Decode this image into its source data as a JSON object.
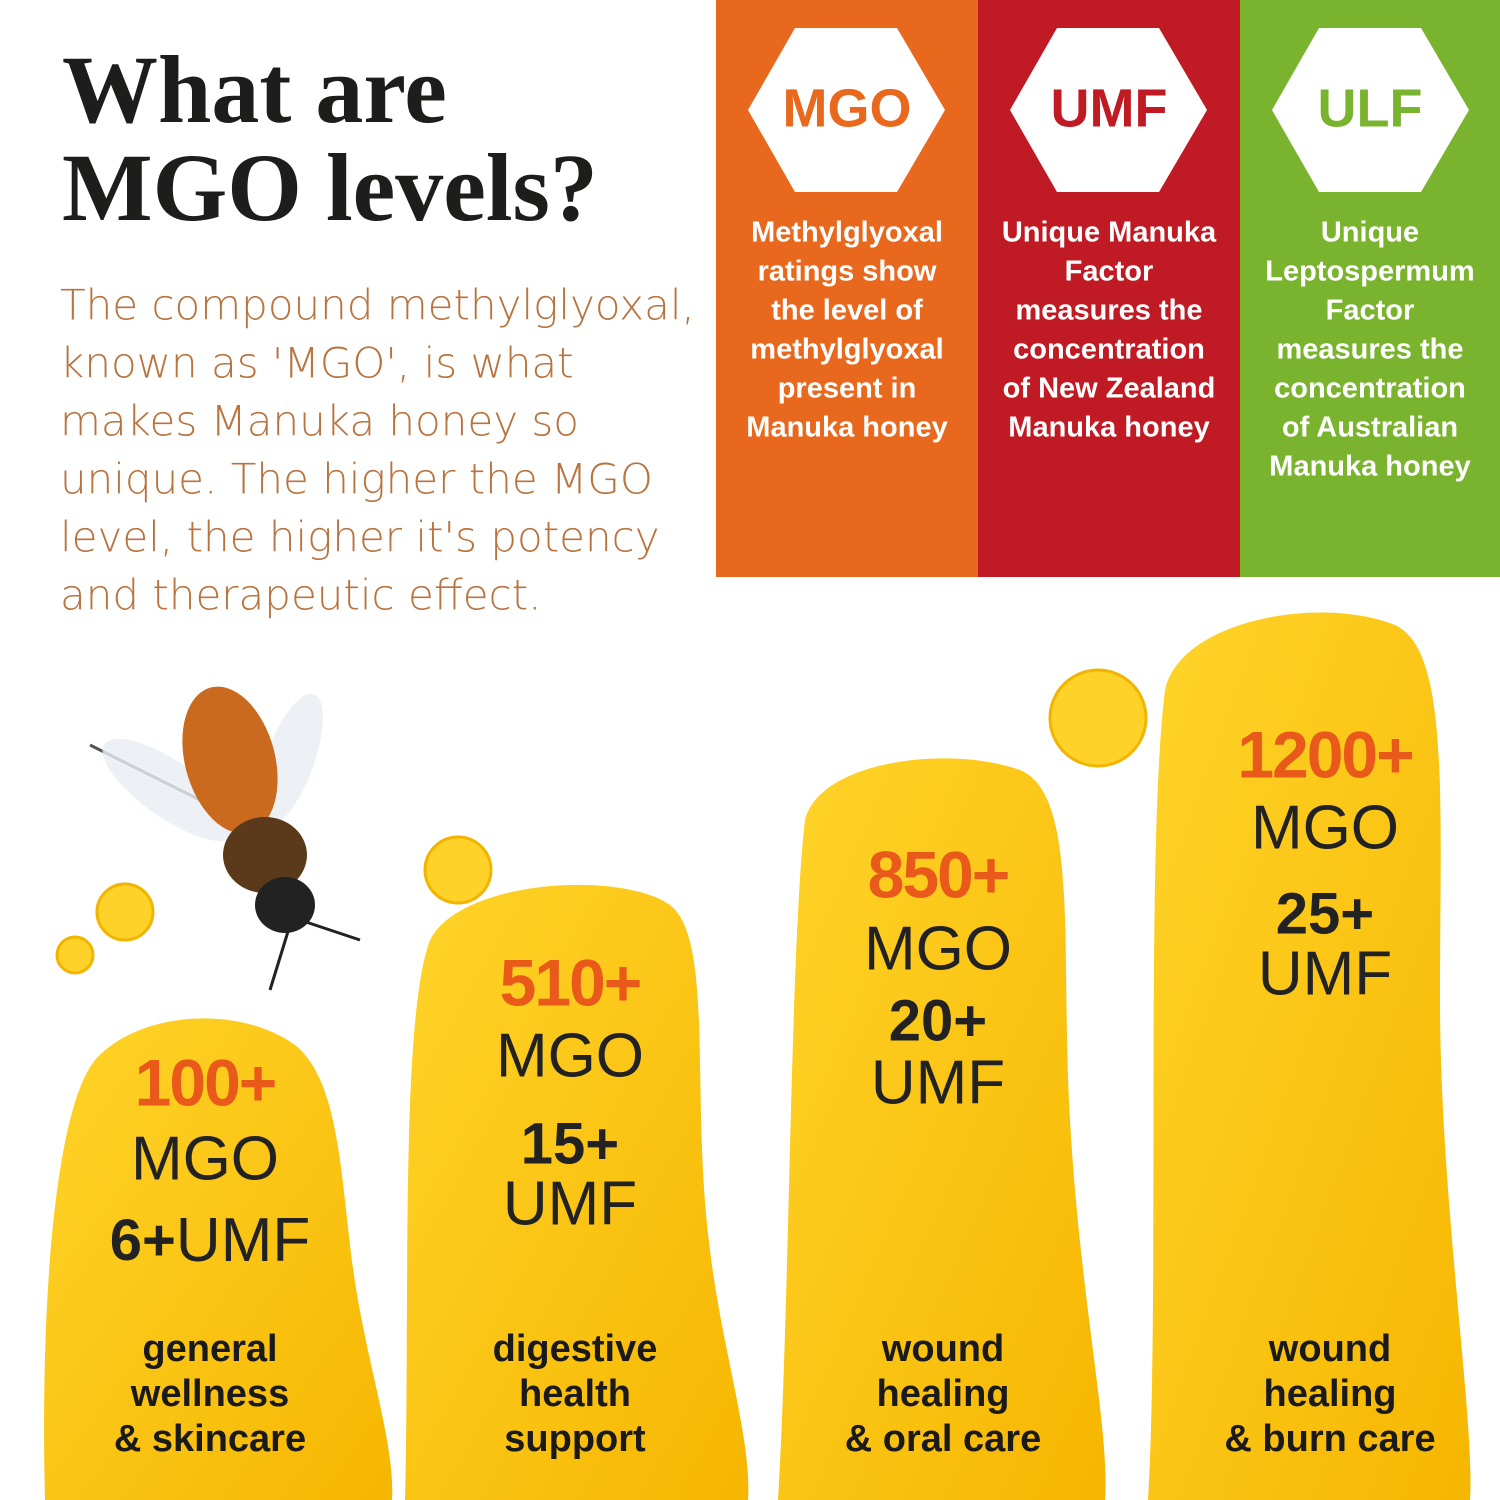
{
  "header": {
    "title_lines": [
      "What are",
      "MGO levels?"
    ],
    "body_lines": [
      "The compound methylglyoxal,",
      "known as 'MGO', is what",
      "makes Manuka honey so",
      "unique. The higher the MGO",
      "level, the higher it's potency",
      "and therapeutic effect."
    ]
  },
  "cards": [
    {
      "label": "MGO",
      "description_lines": [
        "Methylglyoxal",
        "ratings show",
        "the level of",
        "methylglyoxal",
        "present in",
        "Manuka honey"
      ]
    },
    {
      "label": "UMF",
      "description_lines": [
        "Unique Manuka",
        "Factor",
        "measures the",
        "concentration",
        "of New Zealand",
        "Manuka honey"
      ]
    },
    {
      "label": "ULF",
      "description_lines": [
        "Unique",
        "Leptospermum",
        "Factor",
        "measures the",
        "concentration",
        "of Australian",
        "Manuka honey"
      ]
    }
  ],
  "levels": [
    {
      "mgo": "100+",
      "mgo_unit": "MGO",
      "umf": "6+",
      "umf_unit": "UMF",
      "use_lines": [
        "general",
        "wellness",
        "& skincare"
      ]
    },
    {
      "mgo": "510+",
      "mgo_unit": "MGO",
      "umf": "15+",
      "umf_unit": "UMF",
      "use_lines": [
        "digestive",
        "health",
        "support"
      ]
    },
    {
      "mgo": "850+",
      "mgo_unit": "MGO",
      "umf": "20+",
      "umf_unit": "UMF",
      "use_lines": [
        "wound",
        "healing",
        "& oral care"
      ]
    },
    {
      "mgo": "1200+",
      "mgo_unit": "MGO",
      "umf": "25+",
      "umf_unit": "UMF",
      "use_lines": [
        "wound",
        "healing",
        "& burn care"
      ]
    }
  ]
}
